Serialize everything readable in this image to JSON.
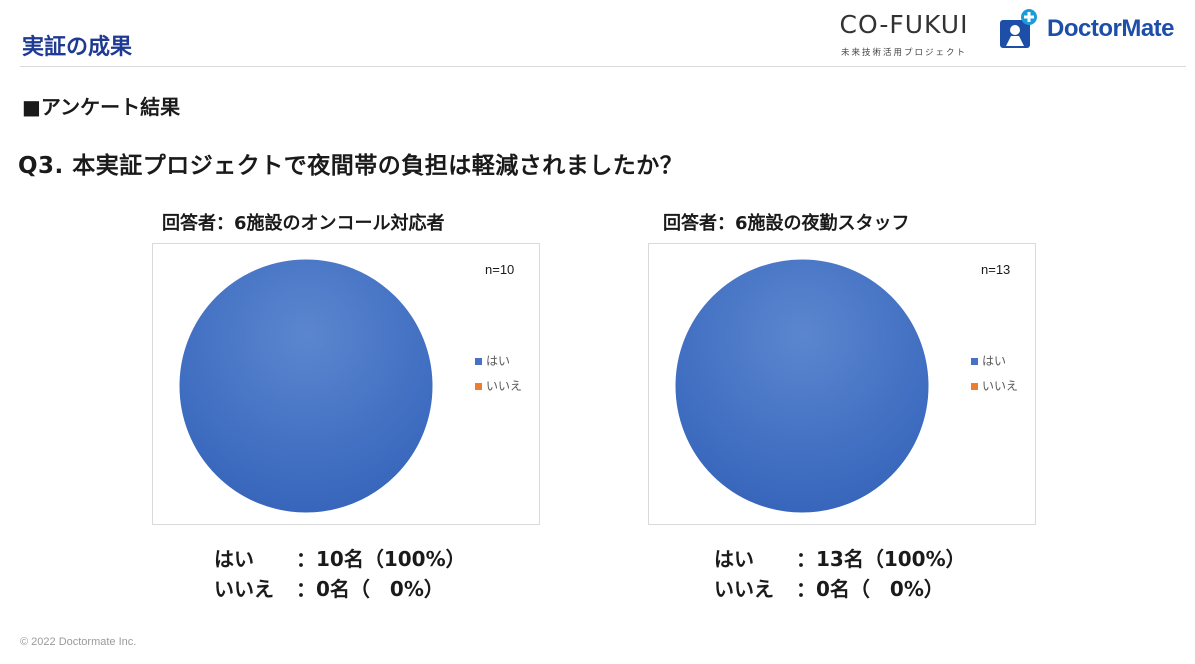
{
  "header": {
    "page_title": "実証の成果",
    "cofukui_word": "CO-FUKUI",
    "cofukui_sub": "未来技術活用プロジェクト",
    "doctormate_word": "DoctorMate"
  },
  "section_heading": "■アンケート結果",
  "question": "Q3.  本実証プロジェクトで夜間帯の負担は軽減されましたか？",
  "colors": {
    "title": "#1f3a93",
    "yes": "#4472c4",
    "no": "#ed7d31",
    "brand": "#1d4fa8"
  },
  "chart_data": [
    {
      "type": "pie",
      "title": "回答者：6施設のオンコール対応者",
      "annotation": "n=10",
      "categories": [
        "はい",
        "いいえ"
      ],
      "values": [
        10,
        0
      ],
      "legend": "right",
      "summary": [
        {
          "label": "はい",
          "value": "：10名（100%）"
        },
        {
          "label": "いいえ",
          "value": "：0名（　0%）"
        }
      ]
    },
    {
      "type": "pie",
      "title": "回答者：6施設の夜勤スタッフ",
      "annotation": "n=13",
      "categories": [
        "はい",
        "いいえ"
      ],
      "values": [
        13,
        0
      ],
      "legend": "right",
      "summary": [
        {
          "label": "はい",
          "value": "：13名（100%）"
        },
        {
          "label": "いいえ",
          "value": "：0名（　0%）"
        }
      ]
    }
  ],
  "footer": "© 2022 Doctormate Inc."
}
